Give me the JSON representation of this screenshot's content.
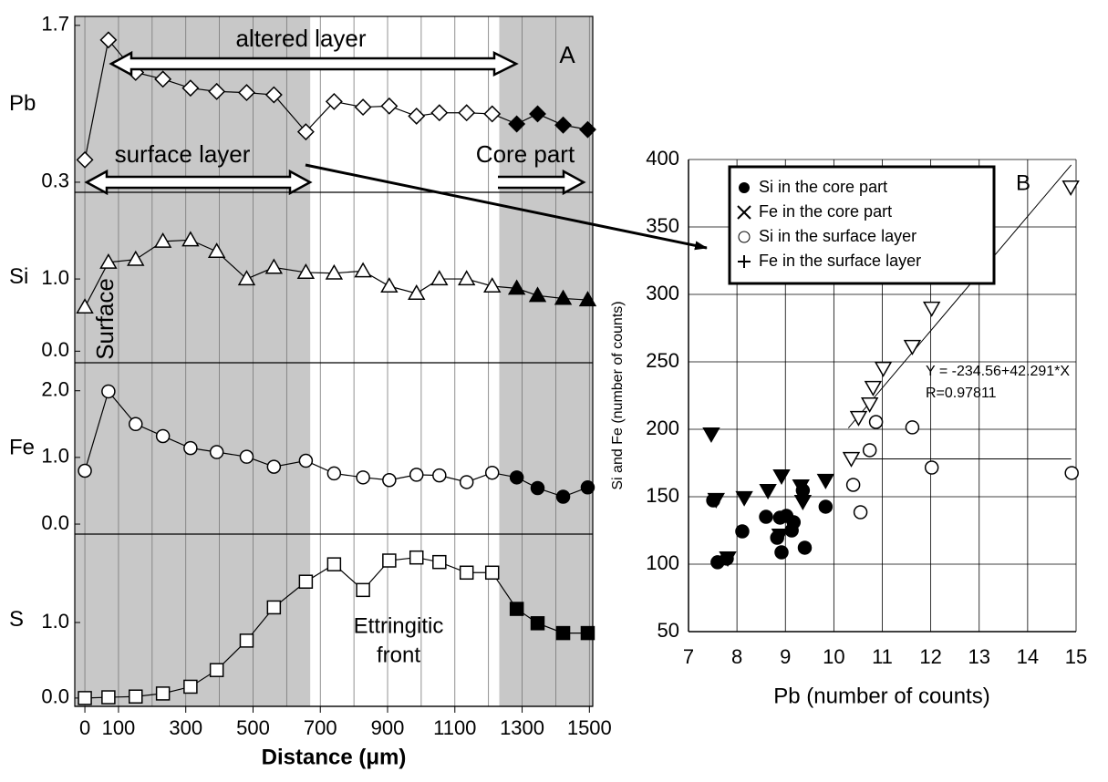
{
  "chart_data": [
    {
      "type": "line",
      "xlabel": "Distance (μm)",
      "xlim": [
        -30,
        1510
      ],
      "xticks": [
        0,
        100,
        300,
        500,
        700,
        900,
        1100,
        1300,
        1500
      ],
      "xgrid": [
        0,
        100,
        200,
        300,
        400,
        500,
        600,
        700,
        800,
        900,
        1000,
        1100,
        1200,
        1300,
        1400,
        1500
      ],
      "bands": [
        [
          -30,
          670
        ],
        [
          1232,
          1510
        ]
      ],
      "band_color": "#c8c8c8",
      "x": [
        0,
        70,
        151,
        232,
        314,
        392,
        481,
        562,
        657,
        741,
        827,
        905,
        986,
        1054,
        1135,
        1211,
        1284,
        1346,
        1422,
        1495
      ],
      "marker_colors": [
        "#fff",
        "#fff",
        "#fff",
        "#fff",
        "#fff",
        "#fff",
        "#fff",
        "#fff",
        "#fff",
        "#fff",
        "#fff",
        "#fff",
        "#fff",
        "#fff",
        "#fff",
        "#fff",
        "#000",
        "#000",
        "#000",
        "#000"
      ],
      "annotations": {
        "altered": "altered layer",
        "surface_layer": "surface layer",
        "core": "Core part",
        "panel": "A",
        "surface": "Surface",
        "front": [
          "Ettringitic",
          "front"
        ]
      },
      "panels": [
        {
          "ylabel": "Pb",
          "marker": "diamond",
          "ylim": [
            0.21,
            1.78
          ],
          "yticks": [
            0.3,
            1.7
          ],
          "values": [
            0.5,
            1.57,
            1.28,
            1.22,
            1.14,
            1.11,
            1.1,
            1.08,
            0.75,
            1.02,
            0.97,
            0.98,
            0.89,
            0.92,
            0.92,
            0.91,
            0.82,
            0.91,
            0.81,
            0.77
          ]
        },
        {
          "ylabel": "Si",
          "marker": "triangle",
          "ylim": [
            -0.16,
            2.2
          ],
          "yticks": [
            {
              "value": 0,
              "label": "0.0"
            },
            {
              "value": 1,
              "label": "1.0"
            }
          ],
          "values": [
            0.61,
            1.23,
            1.27,
            1.52,
            1.54,
            1.38,
            1.0,
            1.16,
            1.09,
            1.08,
            1.11,
            0.9,
            0.8,
            1.0,
            1.0,
            0.9,
            0.87,
            0.77,
            0.73,
            0.71
          ]
        },
        {
          "ylabel": "Fe",
          "marker": "circle",
          "ylim": [
            -0.15,
            2.42
          ],
          "yticks": [
            {
              "value": 0,
              "label": "0.0"
            },
            {
              "value": 1,
              "label": "1.0"
            },
            {
              "value": 2,
              "label": "2.0"
            }
          ],
          "values": [
            0.8,
            1.99,
            1.5,
            1.32,
            1.14,
            1.08,
            1.01,
            0.86,
            0.95,
            0.76,
            0.7,
            0.66,
            0.74,
            0.73,
            0.63,
            0.77,
            0.7,
            0.54,
            0.41,
            0.55
          ]
        },
        {
          "ylabel": "S",
          "marker": "square",
          "ylim": [
            -0.11,
            2.17
          ],
          "yticks": [
            {
              "value": 0,
              "label": "0.0"
            },
            {
              "value": 1,
              "label": "1.0"
            }
          ],
          "values": [
            0.0,
            0.01,
            0.02,
            0.06,
            0.15,
            0.37,
            0.76,
            1.2,
            1.54,
            1.77,
            1.43,
            1.82,
            1.86,
            1.8,
            1.66,
            1.66,
            1.18,
            0.99,
            0.86,
            0.86
          ]
        }
      ]
    },
    {
      "type": "scatter",
      "xlabel": "Pb (number of  counts)",
      "ylabel": "Si and Fe (number of counts)",
      "xlim": [
        7,
        15
      ],
      "xticks": [
        7,
        8,
        9,
        10,
        11,
        12,
        13,
        14,
        15
      ],
      "ylim": [
        50,
        400
      ],
      "yticks": [
        50,
        100,
        150,
        200,
        250,
        300,
        350,
        400
      ],
      "grid": true,
      "annotations": {
        "panel": "B",
        "equation": "Y = -234.56+42.291*X",
        "r": "R=0.97811"
      },
      "series": [
        {
          "name": "Si in the core part",
          "legend_marker": "dot",
          "marker": "circle",
          "color": "#000",
          "fill": "#000",
          "x": [
            7.51,
            7.6,
            7.79,
            8.11,
            8.6,
            8.83,
            8.89,
            8.92,
            9.02,
            9.13,
            9.17,
            9.36,
            9.4,
            9.83
          ],
          "values": [
            147.3,
            101.4,
            104.1,
            124.3,
            135.1,
            119.6,
            134.5,
            108.8,
            135.8,
            125.0,
            131.1,
            154.7,
            112.2,
            142.6
          ]
        },
        {
          "name": "Fe in the core part",
          "legend_marker": "cross",
          "marker": "down-triangle",
          "color": "#000",
          "fill": "#000",
          "x": [
            7.47,
            7.57,
            7.81,
            8.15,
            8.64,
            8.92,
            9.32,
            9.36,
            9.83,
            8.89
          ],
          "values": [
            196.6,
            148.0,
            104.7,
            149.4,
            154.7,
            165.5,
            158.1,
            146.6,
            162.2,
            121.6
          ]
        },
        {
          "name": "Si in the surface layer",
          "legend_marker": "ring",
          "marker": "circle",
          "color": "#000",
          "fill": "#fff",
          "x": [
            10.4,
            10.55,
            10.74,
            10.87,
            11.62,
            12.02,
            14.91
          ],
          "values": [
            158.8,
            138.5,
            184.5,
            205.4,
            201.4,
            171.6,
            167.6
          ]
        },
        {
          "name": "Fe in the surface layer",
          "legend_marker": "plus",
          "marker": "down-triangle",
          "color": "#000",
          "fill": "#fff",
          "x": [
            10.36,
            10.51,
            10.74,
            10.81,
            11.02,
            11.62,
            12.02,
            14.89
          ],
          "values": [
            178.4,
            208.8,
            218.9,
            231.1,
            245.3,
            261.5,
            289.9,
            379.7
          ]
        }
      ],
      "lines": [
        {
          "x": [
            10.3,
            14.9
          ],
          "values": [
            201,
            396
          ]
        },
        {
          "x": [
            10.4,
            14.9
          ],
          "values": [
            178,
            178
          ]
        }
      ]
    }
  ]
}
